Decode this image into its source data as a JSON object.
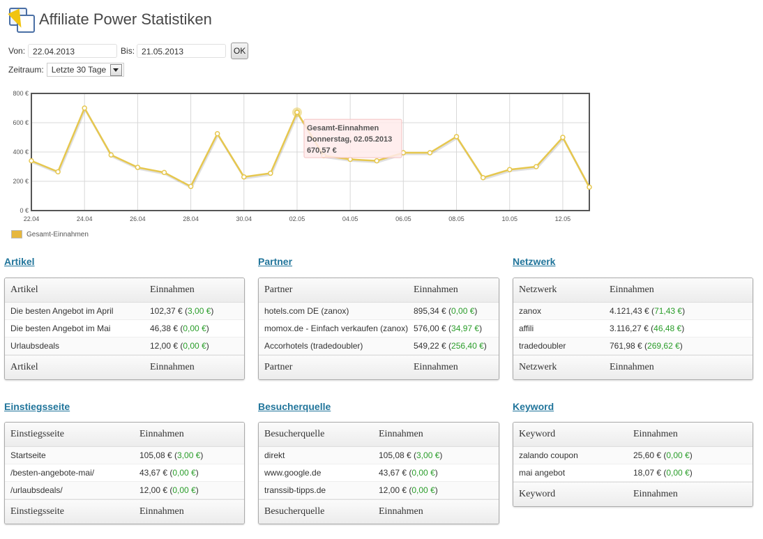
{
  "page": {
    "title": "Affiliate Power Statistiken"
  },
  "filters": {
    "von_label": "Von:",
    "von_value": "22.04.2013",
    "bis_label": "Bis:",
    "bis_value": "21.05.2013",
    "ok_label": "OK",
    "zeitraum_label": "Zeitraum:",
    "zeitraum_value": "Letzte 30 Tage"
  },
  "chart_data": {
    "type": "line",
    "title": "",
    "x": [
      "22.04",
      "23.04",
      "24.04",
      "25.04",
      "26.04",
      "27.04",
      "28.04",
      "29.04",
      "30.04",
      "01.05",
      "02.05",
      "03.05",
      "04.05",
      "05.05",
      "06.05",
      "07.05",
      "08.05",
      "09.05",
      "10.05",
      "11.05",
      "12.05",
      "13.05"
    ],
    "x_ticks": [
      "22.04",
      "24.04",
      "26.04",
      "28.04",
      "30.04",
      "02.05",
      "04.05",
      "06.05",
      "08.05",
      "10.05",
      "12.05"
    ],
    "series": [
      {
        "name": "Gesamt-Einnahmen",
        "values": [
          340,
          265,
          700,
          380,
          295,
          260,
          165,
          525,
          230,
          255,
          671,
          375,
          350,
          340,
          395,
          395,
          505,
          225,
          280,
          300,
          500,
          160
        ],
        "color": "#e6c74e"
      }
    ],
    "ylim": [
      0,
      800
    ],
    "y_ticks": [
      "0 €",
      "200 €",
      "400 €",
      "600 €",
      "800 €"
    ],
    "grid": true,
    "legend": "bottom-left",
    "tooltip": {
      "line1": "Gesamt-Einnahmen",
      "line2": "Donnerstag, 02.05.2013",
      "line3": "670,57 €"
    }
  },
  "legend": {
    "label": "Gesamt-Einnahmen"
  },
  "sections": [
    {
      "title": "Artikel",
      "col1": "Artikel",
      "col2": "Einnahmen",
      "rows": [
        {
          "name": "Die besten Angebot im April",
          "amount": "102,37 € (",
          "diff": "3,00 €",
          "close": ")"
        },
        {
          "name": "Die besten Angebot im Mai",
          "amount": "46,38 € (",
          "diff": "0,00 €",
          "close": ")"
        },
        {
          "name": "Urlaubsdeals",
          "amount": "12,00 € (",
          "diff": "0,00 €",
          "close": ")"
        }
      ]
    },
    {
      "title": "Partner",
      "col1": "Partner",
      "col2": "Einnahmen",
      "rows": [
        {
          "name": "hotels.com DE (zanox)",
          "amount": "895,34 € (",
          "diff": "0,00 €",
          "close": ")"
        },
        {
          "name": "momox.de - Einfach verkaufen (zanox)",
          "amount": "576,00 € (",
          "diff": "34,97 €",
          "close": ")"
        },
        {
          "name": "Accorhotels (tradedoubler)",
          "amount": "549,22 € (",
          "diff": "256,40 €",
          "close": ")"
        }
      ]
    },
    {
      "title": "Netzwerk",
      "col1": "Netzwerk",
      "col2": "Einnahmen",
      "rows": [
        {
          "name": "zanox",
          "amount": "4.121,43 € (",
          "diff": "71,43 €",
          "close": ")"
        },
        {
          "name": "affili",
          "amount": "3.116,27 € (",
          "diff": "46,48 €",
          "close": ")"
        },
        {
          "name": "tradedoubler",
          "amount": "761,98 € (",
          "diff": "269,62 €",
          "close": ")"
        }
      ]
    },
    {
      "title": "Einstiegsseite",
      "col1": "Einstiegsseite",
      "col2": "Einnahmen",
      "rows": [
        {
          "name": "Startseite",
          "amount": "105,08 € (",
          "diff": "3,00 €",
          "close": ")"
        },
        {
          "name": "/besten-angebote-mai/",
          "amount": "43,67 € (",
          "diff": "0,00 €",
          "close": ")"
        },
        {
          "name": "/urlaubsdeals/",
          "amount": "12,00 € (",
          "diff": "0,00 €",
          "close": ")"
        }
      ]
    },
    {
      "title": "Besucherquelle",
      "col1": "Besucherquelle",
      "col2": "Einnahmen",
      "rows": [
        {
          "name": "direkt",
          "amount": "105,08 € (",
          "diff": "3,00 €",
          "close": ")"
        },
        {
          "name": "www.google.de",
          "amount": "43,67 € (",
          "diff": "0,00 €",
          "close": ")"
        },
        {
          "name": "transsib-tipps.de",
          "amount": "12,00 € (",
          "diff": "0,00 €",
          "close": ")"
        }
      ]
    },
    {
      "title": "Keyword",
      "col1": "Keyword",
      "col2": "Einnahmen",
      "rows": [
        {
          "name": "zalando coupon",
          "amount": "25,60 € (",
          "diff": "0,00 €",
          "close": ")"
        },
        {
          "name": "mai angebot",
          "amount": "18,07 € (",
          "diff": "0,00 €",
          "close": ")"
        }
      ]
    }
  ]
}
